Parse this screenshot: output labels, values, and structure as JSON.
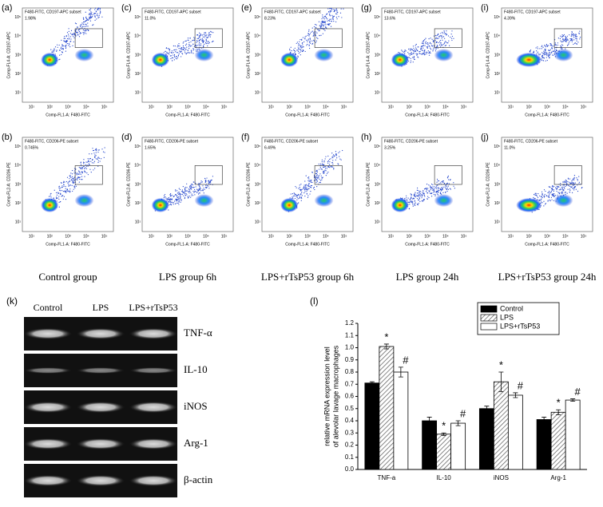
{
  "flow": {
    "ticks": [
      "10¹",
      "10²",
      "10³",
      "10⁴",
      "10⁵"
    ],
    "rows": [
      {
        "subset": "F480-FITC, CD197-APC subset",
        "y_label": "Comp-FL4-A: CD197-APC",
        "x_label": "Comp-FL1-A: F480-FITC",
        "panels": [
          {
            "label": "(a)",
            "percent": "1.98%"
          },
          {
            "label": "(c)",
            "percent": "11.0%"
          },
          {
            "label": "(e)",
            "percent": "8.23%"
          },
          {
            "label": "(g)",
            "percent": "13.6%"
          },
          {
            "label": "(i)",
            "percent": "4.39%"
          }
        ]
      },
      {
        "subset": "F480-FITC, CD206-PE subset",
        "y_label": "Comp-FL2-A: CD206-PE",
        "x_label": "Comp-FL1-A: F480-FITC",
        "panels": [
          {
            "label": "(b)",
            "percent": "0.745%"
          },
          {
            "label": "(d)",
            "percent": "1.65%"
          },
          {
            "label": "(f)",
            "percent": "6.49%"
          },
          {
            "label": "(h)",
            "percent": "3.25%"
          },
          {
            "label": "(j)",
            "percent": "11.0%"
          }
        ]
      }
    ],
    "groups": [
      "Control group",
      "LPS group 6h",
      "LPS+rTsP53 group 6h",
      "LPS group 24h",
      "LPS+rTsP53 group 24h"
    ]
  },
  "gel": {
    "label": "(k)",
    "lanes": [
      "Control",
      "LPS",
      "LPS+rTsP53"
    ],
    "genes": [
      "TNF-α",
      "IL-10",
      "iNOS",
      "Arg-1",
      "β-actin"
    ]
  },
  "chart_data": {
    "type": "bar",
    "label": "(l)",
    "y_label": [
      "relative mRNA expression level",
      "of alevolar lavage macrophages"
    ],
    "categories": [
      "TNF-a",
      "IL-10",
      "iNOS",
      "Arg-1"
    ],
    "series": [
      {
        "name": "Control",
        "color": "#000000",
        "hatch": false,
        "values": [
          0.71,
          0.4,
          0.5,
          0.41
        ],
        "errors": [
          0.01,
          0.03,
          0.02,
          0.02
        ]
      },
      {
        "name": "LPS",
        "color": "#ffffff",
        "hatch": true,
        "values": [
          1.01,
          0.29,
          0.72,
          0.47
        ],
        "errors": [
          0.02,
          0.01,
          0.08,
          0.02
        ],
        "annotations": [
          "*",
          "*",
          "*",
          "*"
        ]
      },
      {
        "name": "LPS+rTsP53",
        "color": "#ffffff",
        "hatch": false,
        "values": [
          0.8,
          0.38,
          0.61,
          0.57
        ],
        "errors": [
          0.04,
          0.02,
          0.02,
          0.01
        ],
        "annotations": [
          "#",
          "#",
          "#",
          "#"
        ]
      }
    ],
    "ylim": [
      0,
      1.2
    ],
    "yticks": [
      {
        "value": 0,
        "label": "0.0"
      },
      0.1,
      0.2,
      0.3,
      0.4,
      0.5,
      0.6,
      0.7,
      0.8,
      0.9,
      {
        "value": 1,
        "label": "1.0"
      },
      1.1,
      1.2
    ],
    "legend": "top-right"
  }
}
